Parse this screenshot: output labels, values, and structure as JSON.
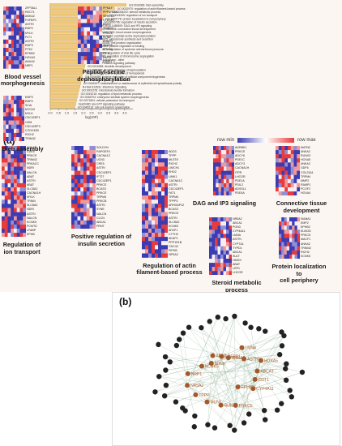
{
  "panel_a_label": "(a)",
  "panel_b_label": "(b)",
  "chart_data": {
    "type": "bar",
    "orientation": "horizontal",
    "xlabel": "log(10P)",
    "xlim": [
      0,
      5
    ],
    "xticks": [
      "0.0",
      "0.5",
      "1.0",
      "1.5",
      "2.0",
      "2.5",
      "3.0",
      "3.5",
      "4.0",
      "4.5"
    ],
    "categories": [
      "GO:0032066: bleb assembly",
      "GO:0032970: regulation of actin filament-based process",
      "GO:0008202: steroid metabolic process",
      "GO:0043269: regulation of ion transport",
      "GO:1990778: protein localization to cell periphery",
      "GO:0050796: regulation of insulin secretion",
      "R-HSA-1489509: DAG and IP3 signaling",
      "GO:0061448: connective tissue development",
      "GO:0001974: blood vessel morphogenesis",
      "GO:0070262: peptidyl-serine dephosphorylation",
      "hsa04925: aldosterone synthesis and secretion",
      "GO:0034330: cell junction organization",
      "GO:0051189: positive regulation of binding",
      "GO:0003073: regulation of systemic arterial blood pressure",
      "GO:1903900: regulation of viral life cycle",
      "GO:0051983: regulation of chromosome segregation",
      "hsa04136: Autophagy - other",
      "hsa04917: Prolactin signaling pathway",
      "GO:0016358: dendrite development",
      "GO:0018107: peptidyl-threonine phosphorylation",
      "GO:1903708: positive regulation of hemopoiesis",
      "GO:0044089: positive regulation of cellular component biogenesis",
      "GO:0001505: regulation of ribosomal",
      "GO:0045197: establishment or maintenance of epithelial cell apical/basal polarity",
      "R-HSA-913531: Interferon Signaling",
      "GO:0001578: microtubule bundle formation",
      "GO:0019216: regulation of lipid metabolic process",
      "GO:0048704: embryonic skeletal system morphogenesis",
      "GO:0071804: cellular potassium ion transport",
      "hsa00480: ala-GTP signaling pathway",
      "GO:0045216: cell-cell junction organization"
    ],
    "values": [
      4.6,
      3.9,
      3.6,
      3.4,
      3.2,
      3.1,
      3.0,
      2.9,
      2.8,
      2.7,
      2.6,
      2.5,
      2.4,
      2.35,
      2.3,
      2.25,
      2.2,
      2.15,
      2.1,
      2.05,
      2.0,
      1.95,
      1.9,
      1.85,
      1.8,
      1.75,
      1.7,
      1.65,
      1.6,
      1.55,
      1.5
    ]
  },
  "scale": {
    "min_label": "row min",
    "max_label": "row max"
  },
  "heatmaps": [
    {
      "title": "Regulation of\nion transport",
      "genes": [
        "ANKA2",
        "CDK5",
        "PRKCE",
        "TRIM42",
        "PRKACC",
        "NDRI",
        "NALCN",
        "ABAT",
        "ASTRI",
        "ABAT",
        "SLC8A2",
        "CACNA1H",
        "MYLK",
        "TRIM4",
        "SLC8A2",
        "NDRI",
        "ASTRI",
        "NALCN",
        "KCNK5",
        "PCMTD",
        "LFABP",
        "EPHB"
      ]
    },
    {
      "title": "Positive regulation of\ninsulin secretion",
      "genes": [
        "SOLDYN",
        "RAPGEF4",
        "CACNA1C",
        "UCN3",
        "CRE5",
        "ASTRI",
        "CDC42EP1",
        "IFT27",
        "CDC42EP1",
        "PRKCE",
        "BCAS3",
        "PRKCE",
        "TRPM4",
        "PRKCB",
        "ASTRI",
        "SYNE",
        "NALCN",
        "CLCN",
        "ABCA1",
        "PRNT"
      ]
    },
    {
      "title": "Regulation of actin\nfilament-based process",
      "genes": [
        "ADD3",
        "TPPP",
        "MLST8",
        "RICH2",
        "LIMCH1",
        "EHD2",
        "LIMK1",
        "CACNA1C",
        "ASTRI",
        "CDC42EP1",
        "FAT1",
        "TRPM4",
        "TPPP3",
        "ARHGAP12",
        "BCAS3",
        "PRKCE",
        "ASTRI",
        "SLC8A2",
        "KCNK5",
        "AFAP1",
        "CYTH2",
        "AKAP1",
        "PPP1R1B",
        "CDC42",
        "PIPKB",
        "NPSA2"
      ]
    },
    {
      "title": "DAG and IP3 signaling",
      "genes": [
        "ADRBK1",
        "PRKCE",
        "ADCY6",
        "PDE1C",
        "ADCY3",
        "CACNA1H",
        "ITPR",
        "LHCGR",
        "PDE1A",
        "PDIL2",
        "ADSSL1",
        "PDE4A"
      ]
    },
    {
      "title": "Connective tissue\ndevelopment",
      "genes": [
        "MATN2",
        "ANKA2",
        "RUNX3",
        "HOXA5",
        "ANKA2",
        "GDF6",
        "COL23A1",
        "TRPM4",
        "MMP2",
        "RAMP1",
        "PCOF2",
        "HOXA4"
      ]
    },
    {
      "title": "Steroid metabolic process",
      "genes": [
        "NR5A2",
        "ABCA1",
        "PON3",
        "CYP4A11",
        "LMNA",
        "ASTRI",
        "CYP7A1",
        "TYPD1",
        "ABCA1",
        "SULT",
        "HMGS",
        "ABAT",
        "LRP1",
        "LHCGR"
      ]
    },
    {
      "title": "Protein localization to\ncell periphery",
      "genes": [
        "NUMA1",
        "EMP2",
        "EPHB2",
        "ELMOD",
        "PRKCE",
        "MACF1",
        "ANKA2",
        "TRIM42",
        "RICH2",
        "KCNK5"
      ]
    },
    {
      "title": "Blood vessel\nmorphogenesis",
      "genes": [
        "ZFP36L1",
        "RECT1",
        "ANKA2",
        "FGFBP1",
        "ASTRI",
        "EMP2",
        "MYLK",
        "FLT1",
        "ASTRI",
        "EMP3",
        "PTK2",
        "EPHB2",
        "HOXA3",
        "ANKA2",
        "NRP1"
      ]
    },
    {
      "title": "Peptidyl-serine\ndephosphorylation",
      "genes": [
        "PPM1F",
        "PPP1R15A",
        "SPRED2",
        "CTDSPL",
        "BAG3",
        "TRIM42",
        "PRKCE",
        "SYNE",
        "EHMT2",
        "AKAP8",
        "EPHB2",
        "ITPR",
        "HMT2",
        "FABP1"
      ]
    },
    {
      "title": "Bleb assembly",
      "genes": [
        "EMP3",
        "EMP2",
        "SCAI",
        "MYO10",
        "MYLK",
        "CDC42EP1",
        "CDM",
        "CDC42EP3",
        "CCDC42B",
        "RICH2",
        "TRIM42"
      ]
    }
  ],
  "network_nodes": [
    {
      "label": "CDT1",
      "kind": "gene"
    },
    {
      "label": "CYP4A11",
      "kind": "gene"
    },
    {
      "label": "EPHB2",
      "kind": "gene"
    },
    {
      "label": "PRKCE",
      "kind": "gene"
    },
    {
      "label": "RUNX3",
      "kind": "gene"
    },
    {
      "label": "MUN1",
      "kind": "gene"
    },
    {
      "label": "TPPP",
      "kind": "gene"
    },
    {
      "label": "NR5A2",
      "kind": "gene"
    },
    {
      "label": "NRP1",
      "kind": "gene"
    },
    {
      "label": "KCNK5",
      "kind": "gene"
    },
    {
      "label": "MYLK",
      "kind": "gene"
    },
    {
      "label": "ABAT",
      "kind": "gene"
    },
    {
      "label": "FGFBP1",
      "kind": "gene"
    },
    {
      "label": "ANKA2",
      "kind": "gene"
    },
    {
      "label": "LMNA",
      "kind": "gene"
    },
    {
      "label": "ASTRI",
      "kind": "gene"
    },
    {
      "label": "HOXA5",
      "kind": "gene"
    },
    {
      "label": "ABCA1",
      "kind": "gene"
    }
  ],
  "colors": {
    "bar": "#f0c879",
    "bar_edge": "#c9a25a",
    "high": "#e83a3a",
    "low": "#3b3bb3",
    "mid": "#ffffff",
    "gene_node": "#a35a2a",
    "hub_node": "#222222"
  }
}
